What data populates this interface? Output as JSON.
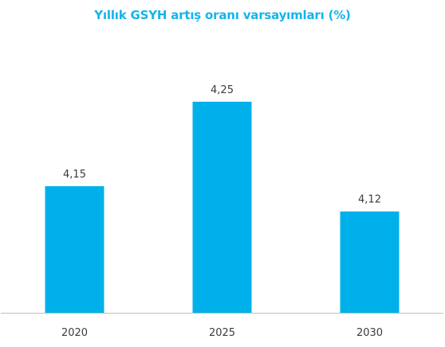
{
  "chart_data": {
    "type": "bar",
    "title": "Yıllık GSYH artış oranı varsayımları (%)",
    "categories": [
      "2020",
      "2025",
      "2030"
    ],
    "values": [
      4.15,
      4.25,
      4.12
    ],
    "value_labels": [
      "4,15",
      "4,25",
      "4,12"
    ],
    "xlabel": "",
    "ylabel": "",
    "ylim": [
      4.0,
      4.28
    ],
    "grid": false,
    "legend": "none",
    "colors": {
      "bar": "#00b0eb",
      "title": "#13b5ea",
      "axis": "#bfbfbf",
      "text": "#3b3b3b"
    }
  }
}
